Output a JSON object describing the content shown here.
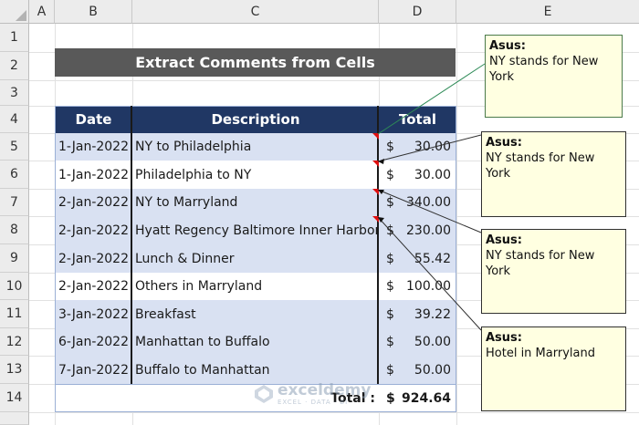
{
  "columns": [
    "A",
    "B",
    "C",
    "D",
    "E"
  ],
  "rows": [
    "1",
    "2",
    "3",
    "4",
    "5",
    "6",
    "7",
    "8",
    "9",
    "10",
    "11",
    "12",
    "13",
    "14"
  ],
  "title": "Extract Comments from Cells",
  "table": {
    "headers": {
      "date": "Date",
      "description": "Description",
      "total": "Total"
    },
    "rows": [
      {
        "date": "1-Jan-2022",
        "description": "NY to Philadelphia",
        "currency": "$",
        "amount": "30.00"
      },
      {
        "date": "1-Jan-2022",
        "description": "Philadelphia to NY",
        "currency": "$",
        "amount": "30.00"
      },
      {
        "date": "2-Jan-2022",
        "description": "NY to Marryland",
        "currency": "$",
        "amount": "340.00"
      },
      {
        "date": "2-Jan-2022",
        "description": "Hyatt Regency Baltimore Inner Harbor",
        "currency": "$",
        "amount": "230.00"
      },
      {
        "date": "2-Jan-2022",
        "description": "Lunch & Dinner",
        "currency": "$",
        "amount": "55.42"
      },
      {
        "date": "2-Jan-2022",
        "description": "Others in Marryland",
        "currency": "$",
        "amount": "100.00"
      },
      {
        "date": "3-Jan-2022",
        "description": "Breakfast",
        "currency": "$",
        "amount": "39.22"
      },
      {
        "date": "6-Jan-2022",
        "description": "Manhattan to Buffalo",
        "currency": "$",
        "amount": "50.00"
      },
      {
        "date": "7-Jan-2022",
        "description": "Buffalo to Manhattan",
        "currency": "$",
        "amount": "50.00"
      }
    ],
    "total": {
      "label": "Total :",
      "currency": "$",
      "amount": "924.64"
    }
  },
  "comments": [
    {
      "author": "Asus:",
      "text": "NY stands for New York"
    },
    {
      "author": "Asus:",
      "text": "NY stands for New York"
    },
    {
      "author": "Asus:",
      "text": "NY stands for New York"
    },
    {
      "author": "Asus:",
      "text": "Hotel in Marryland"
    }
  ],
  "watermark": {
    "brand": "exceldemy",
    "tagline": "EXCEL · DATA · BI"
  },
  "colors": {
    "header_fill": "#203764",
    "band_fill": "#d9e1f2",
    "title_fill": "#595959",
    "note_fill": "#ffffe1",
    "marker": "#e01010"
  }
}
